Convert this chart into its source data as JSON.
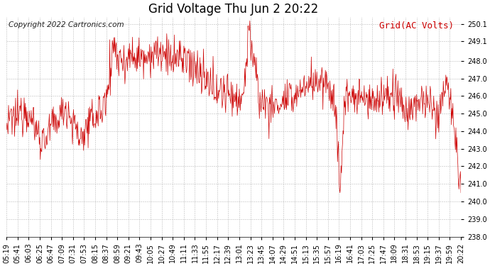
{
  "title": "Grid Voltage Thu Jun 2 20:22",
  "legend_label": "Grid(AC Volts)",
  "copyright_text": "Copyright 2022 Cartronics.com",
  "ylim": [
    238.0,
    250.5
  ],
  "ytick_vals": [
    238.0,
    239.0,
    240.0,
    241.0,
    242.0,
    243.0,
    244.0,
    245.0,
    246.0,
    247.0,
    248.0,
    249.1,
    250.1
  ],
  "xtick_labels": [
    "05:19",
    "05:41",
    "06:03",
    "06:25",
    "06:47",
    "07:09",
    "07:31",
    "07:53",
    "08:15",
    "08:37",
    "08:59",
    "09:21",
    "09:43",
    "10:05",
    "10:27",
    "10:49",
    "11:11",
    "11:33",
    "11:55",
    "12:17",
    "12:39",
    "13:01",
    "13:23",
    "13:45",
    "14:07",
    "14:29",
    "14:51",
    "15:13",
    "15:35",
    "15:57",
    "16:19",
    "16:41",
    "17:03",
    "17:25",
    "17:47",
    "18:09",
    "18:31",
    "18:53",
    "19:15",
    "19:37",
    "19:59",
    "20:22"
  ],
  "line_color": "#cc0000",
  "background_color": "#ffffff",
  "grid_color": "#bbbbbb",
  "title_fontsize": 12,
  "axis_fontsize": 7,
  "legend_fontsize": 9,
  "copyright_fontsize": 7.5
}
